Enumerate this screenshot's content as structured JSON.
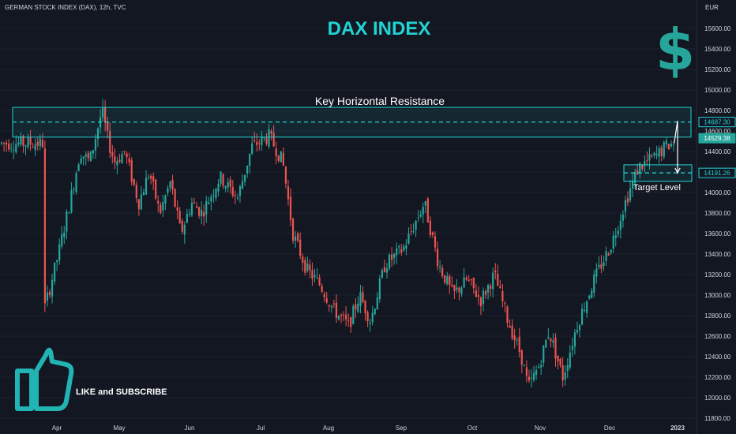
{
  "header": {
    "symbol_line": "GERMAN STOCK INDEX (DAX), 12h, TVC",
    "currency": "EUR",
    "title": "DAX INDEX"
  },
  "icons": {
    "dollar": "dollar-icon",
    "thumbs_up": "thumbs-up-icon"
  },
  "annotations": {
    "resistance_label": "Key Horizontal Resistance",
    "target_label": "Target Level",
    "like_subscribe": "LIKE and SUBSCRIBE"
  },
  "colors": {
    "background": "#131722",
    "up": "#26a69a",
    "down": "#ef5350",
    "accent": "#22d3d3",
    "text": "#d1d4dc"
  },
  "chart_data": {
    "type": "candlestick",
    "title": "DAX INDEX",
    "y_unit": "EUR",
    "ylim": [
      11800,
      15800
    ],
    "y_ticks": [
      11800,
      12000,
      12200,
      12400,
      12600,
      12800,
      13000,
      13200,
      13400,
      13600,
      13800,
      14000,
      14200,
      14400,
      14600,
      14800,
      15000,
      15200,
      15400,
      15600
    ],
    "x_ticks": [
      "Apr",
      "May",
      "Jun",
      "Jul",
      "Aug",
      "Sep",
      "Oct",
      "Nov",
      "Dec",
      "2023"
    ],
    "price_tags": [
      {
        "value": 14687.3,
        "text": "14687.30",
        "style": "outline"
      },
      {
        "value": 14529.38,
        "text": "14529.38",
        "style": "green"
      },
      {
        "value": 14191.26,
        "text": "14191.26",
        "style": "outline"
      }
    ],
    "resistance_zone": [
      14540,
      14830
    ],
    "resistance_level": 14687.3,
    "target_zone": [
      14110,
      14270
    ],
    "target_level": 14191.26,
    "projection_path": [
      {
        "month": 8.95,
        "value": 14480
      },
      {
        "month": 9.2,
        "value": 14700
      },
      {
        "month": 9.58,
        "value": 14191.26
      }
    ],
    "path_points": [
      {
        "month": -0.2,
        "value": 12800
      },
      {
        "month": 0.05,
        "value": 13400
      },
      {
        "month": 0.25,
        "value": 13950
      },
      {
        "month": 0.4,
        "value": 14400
      },
      {
        "month": 0.55,
        "value": 14300
      },
      {
        "month": 0.75,
        "value": 14800
      },
      {
        "month": 0.85,
        "value": 14500
      },
      {
        "month": 0.95,
        "value": 14300
      },
      {
        "month": 1.1,
        "value": 14400
      },
      {
        "month": 1.3,
        "value": 13900
      },
      {
        "month": 1.45,
        "value": 14200
      },
      {
        "month": 1.6,
        "value": 13800
      },
      {
        "month": 1.75,
        "value": 14100
      },
      {
        "month": 1.9,
        "value": 13600
      },
      {
        "month": 2.05,
        "value": 13900
      },
      {
        "month": 2.2,
        "value": 13800
      },
      {
        "month": 2.45,
        "value": 14150
      },
      {
        "month": 2.7,
        "value": 13950
      },
      {
        "month": 2.9,
        "value": 14450
      },
      {
        "month": 3.15,
        "value": 14550
      },
      {
        "month": 3.35,
        "value": 14300
      },
      {
        "month": 3.5,
        "value": 13600
      },
      {
        "month": 3.7,
        "value": 13250
      },
      {
        "month": 3.9,
        "value": 13100
      },
      {
        "month": 4.1,
        "value": 12850
      },
      {
        "month": 4.3,
        "value": 12700
      },
      {
        "month": 4.45,
        "value": 13000
      },
      {
        "month": 4.6,
        "value": 12750
      },
      {
        "month": 4.8,
        "value": 13300
      },
      {
        "month": 5.05,
        "value": 13450
      },
      {
        "month": 5.25,
        "value": 13750
      },
      {
        "month": 5.35,
        "value": 13900
      },
      {
        "month": 5.55,
        "value": 13300
      },
      {
        "month": 5.75,
        "value": 13000
      },
      {
        "month": 5.95,
        "value": 13150
      },
      {
        "month": 6.15,
        "value": 12950
      },
      {
        "month": 6.35,
        "value": 13200
      },
      {
        "month": 6.55,
        "value": 12750
      },
      {
        "month": 6.75,
        "value": 12400
      },
      {
        "month": 6.85,
        "value": 12100
      },
      {
        "month": 7.0,
        "value": 12300
      },
      {
        "month": 7.15,
        "value": 12650
      },
      {
        "month": 7.35,
        "value": 12200
      },
      {
        "month": 7.55,
        "value": 12700
      },
      {
        "month": 7.8,
        "value": 13150
      },
      {
        "month": 8.05,
        "value": 13500
      },
      {
        "month": 8.25,
        "value": 13900
      },
      {
        "month": 8.45,
        "value": 14250
      },
      {
        "month": 8.7,
        "value": 14350
      },
      {
        "month": 8.85,
        "value": 14450
      },
      {
        "month": 8.95,
        "value": 14480
      }
    ]
  }
}
